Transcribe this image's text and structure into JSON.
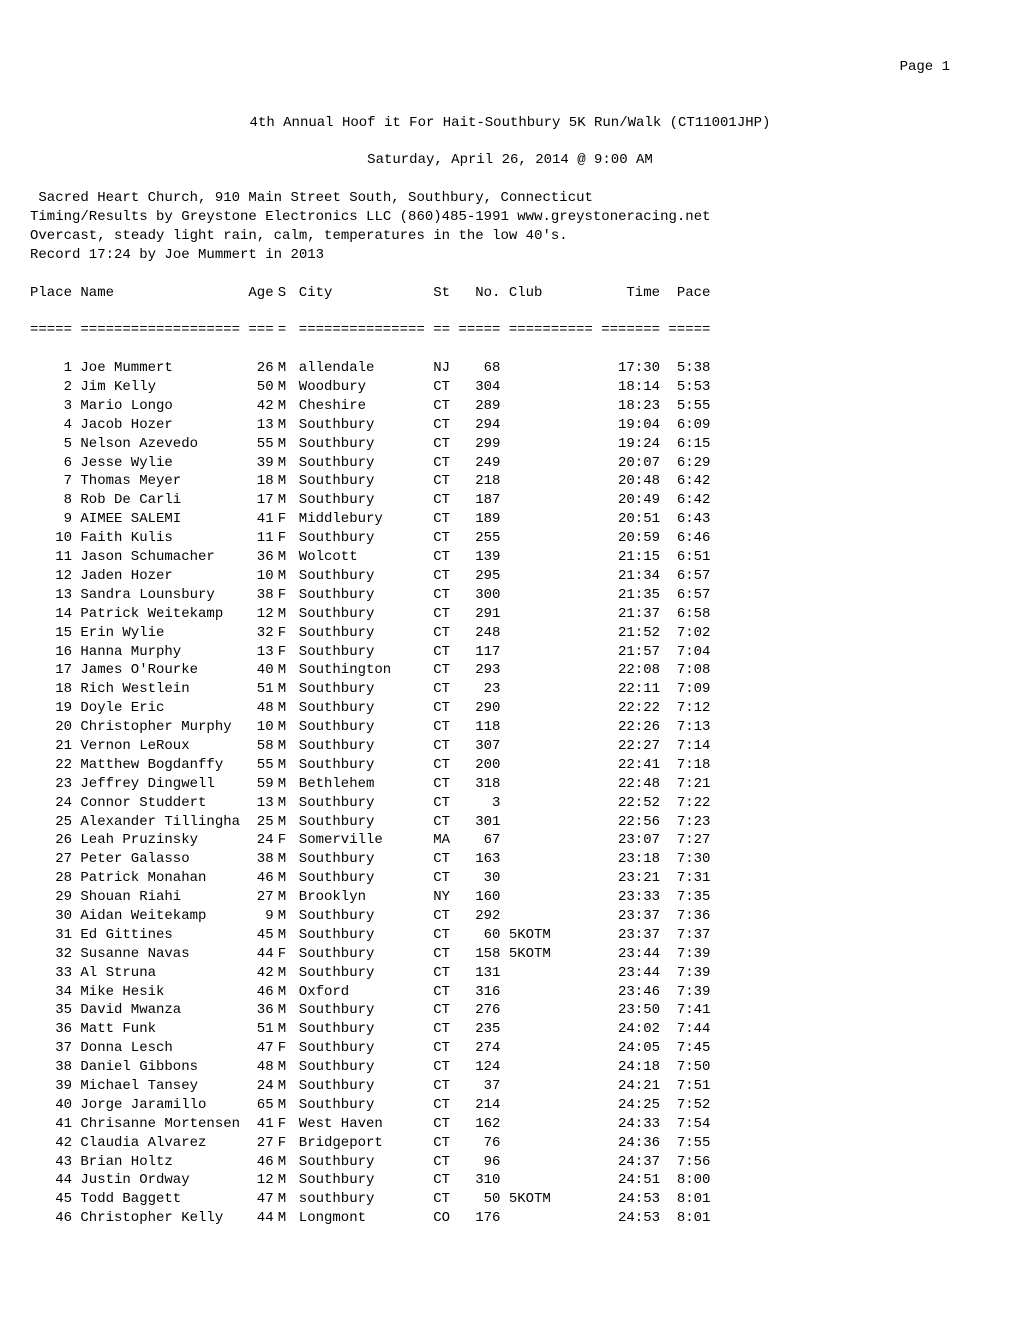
{
  "page_number": "Page 1",
  "title_line_1": "4th Annual Hoof it For Hait-Southbury 5K Run/Walk (CT11001JHP)",
  "title_line_2": "Saturday, April 26, 2014 @ 9:00 AM",
  "info_lines": [
    " Sacred Heart Church, 910 Main Street South, Southbury, Connecticut",
    "Timing/Results by Greystone Electronics LLC (860)485-1991 www.greystoneracing.net",
    "Overcast, steady light rain, calm, temperatures in the low 40's.",
    "Record 17:24 by Joe Mummert in 2013"
  ],
  "columns": [
    "Place",
    "Name",
    "Age",
    "S",
    "City",
    "St",
    "No.",
    "Club",
    "Time",
    "Pace"
  ],
  "sep": [
    "=====",
    "===================",
    "===",
    "=",
    "===============",
    "==",
    "=====",
    "==========",
    "=======",
    "====="
  ],
  "rows": [
    {
      "place": "1",
      "name": "Joe Mummert",
      "age": "26",
      "s": "M",
      "city": "allendale",
      "st": "NJ",
      "no": "68",
      "club": "",
      "time": "17:30",
      "pace": "5:38"
    },
    {
      "place": "2",
      "name": "Jim Kelly",
      "age": "50",
      "s": "M",
      "city": "Woodbury",
      "st": "CT",
      "no": "304",
      "club": "",
      "time": "18:14",
      "pace": "5:53"
    },
    {
      "place": "3",
      "name": "Mario Longo",
      "age": "42",
      "s": "M",
      "city": "Cheshire",
      "st": "CT",
      "no": "289",
      "club": "",
      "time": "18:23",
      "pace": "5:55"
    },
    {
      "place": "4",
      "name": "Jacob Hozer",
      "age": "13",
      "s": "M",
      "city": "Southbury",
      "st": "CT",
      "no": "294",
      "club": "",
      "time": "19:04",
      "pace": "6:09"
    },
    {
      "place": "5",
      "name": "Nelson Azevedo",
      "age": "55",
      "s": "M",
      "city": "Southbury",
      "st": "CT",
      "no": "299",
      "club": "",
      "time": "19:24",
      "pace": "6:15"
    },
    {
      "place": "6",
      "name": "Jesse Wylie",
      "age": "39",
      "s": "M",
      "city": "Southbury",
      "st": "CT",
      "no": "249",
      "club": "",
      "time": "20:07",
      "pace": "6:29"
    },
    {
      "place": "7",
      "name": "Thomas Meyer",
      "age": "18",
      "s": "M",
      "city": "Southbury",
      "st": "CT",
      "no": "218",
      "club": "",
      "time": "20:48",
      "pace": "6:42"
    },
    {
      "place": "8",
      "name": "Rob De Carli",
      "age": "17",
      "s": "M",
      "city": "Southbury",
      "st": "CT",
      "no": "187",
      "club": "",
      "time": "20:49",
      "pace": "6:42"
    },
    {
      "place": "9",
      "name": "AIMEE SALEMI",
      "age": "41",
      "s": "F",
      "city": "Middlebury",
      "st": "CT",
      "no": "189",
      "club": "",
      "time": "20:51",
      "pace": "6:43"
    },
    {
      "place": "10",
      "name": "Faith Kulis",
      "age": "11",
      "s": "F",
      "city": "Southbury",
      "st": "CT",
      "no": "255",
      "club": "",
      "time": "20:59",
      "pace": "6:46"
    },
    {
      "place": "11",
      "name": "Jason Schumacher",
      "age": "36",
      "s": "M",
      "city": "Wolcott",
      "st": "CT",
      "no": "139",
      "club": "",
      "time": "21:15",
      "pace": "6:51"
    },
    {
      "place": "12",
      "name": "Jaden Hozer",
      "age": "10",
      "s": "M",
      "city": "Southbury",
      "st": "CT",
      "no": "295",
      "club": "",
      "time": "21:34",
      "pace": "6:57"
    },
    {
      "place": "13",
      "name": "Sandra Lounsbury",
      "age": "38",
      "s": "F",
      "city": "Southbury",
      "st": "CT",
      "no": "300",
      "club": "",
      "time": "21:35",
      "pace": "6:57"
    },
    {
      "place": "14",
      "name": "Patrick Weitekamp",
      "age": "12",
      "s": "M",
      "city": "Southbury",
      "st": "CT",
      "no": "291",
      "club": "",
      "time": "21:37",
      "pace": "6:58"
    },
    {
      "place": "15",
      "name": "Erin Wylie",
      "age": "32",
      "s": "F",
      "city": "Southbury",
      "st": "CT",
      "no": "248",
      "club": "",
      "time": "21:52",
      "pace": "7:02"
    },
    {
      "place": "16",
      "name": "Hanna Murphy",
      "age": "13",
      "s": "F",
      "city": "Southbury",
      "st": "CT",
      "no": "117",
      "club": "",
      "time": "21:57",
      "pace": "7:04"
    },
    {
      "place": "17",
      "name": "James O'Rourke",
      "age": "40",
      "s": "M",
      "city": "Southington",
      "st": "CT",
      "no": "293",
      "club": "",
      "time": "22:08",
      "pace": "7:08"
    },
    {
      "place": "18",
      "name": "Rich Westlein",
      "age": "51",
      "s": "M",
      "city": "Southbury",
      "st": "CT",
      "no": "23",
      "club": "",
      "time": "22:11",
      "pace": "7:09"
    },
    {
      "place": "19",
      "name": "Doyle Eric",
      "age": "48",
      "s": "M",
      "city": "Southbury",
      "st": "CT",
      "no": "290",
      "club": "",
      "time": "22:22",
      "pace": "7:12"
    },
    {
      "place": "20",
      "name": "Christopher Murphy",
      "age": "10",
      "s": "M",
      "city": "Southbury",
      "st": "CT",
      "no": "118",
      "club": "",
      "time": "22:26",
      "pace": "7:13"
    },
    {
      "place": "21",
      "name": "Vernon LeRoux",
      "age": "58",
      "s": "M",
      "city": "Southbury",
      "st": "CT",
      "no": "307",
      "club": "",
      "time": "22:27",
      "pace": "7:14"
    },
    {
      "place": "22",
      "name": "Matthew Bogdanffy",
      "age": "55",
      "s": "M",
      "city": "Southbury",
      "st": "CT",
      "no": "200",
      "club": "",
      "time": "22:41",
      "pace": "7:18"
    },
    {
      "place": "23",
      "name": "Jeffrey Dingwell",
      "age": "59",
      "s": "M",
      "city": "Bethlehem",
      "st": "CT",
      "no": "318",
      "club": "",
      "time": "22:48",
      "pace": "7:21"
    },
    {
      "place": "24",
      "name": "Connor Studdert",
      "age": "13",
      "s": "M",
      "city": "Southbury",
      "st": "CT",
      "no": "3",
      "club": "",
      "time": "22:52",
      "pace": "7:22"
    },
    {
      "place": "25",
      "name": "Alexander Tillingha",
      "age": "25",
      "s": "M",
      "city": "Southbury",
      "st": "CT",
      "no": "301",
      "club": "",
      "time": "22:56",
      "pace": "7:23"
    },
    {
      "place": "26",
      "name": "Leah Pruzinsky",
      "age": "24",
      "s": "F",
      "city": "Somerville",
      "st": "MA",
      "no": "67",
      "club": "",
      "time": "23:07",
      "pace": "7:27"
    },
    {
      "place": "27",
      "name": "Peter Galasso",
      "age": "38",
      "s": "M",
      "city": "Southbury",
      "st": "CT",
      "no": "163",
      "club": "",
      "time": "23:18",
      "pace": "7:30"
    },
    {
      "place": "28",
      "name": "Patrick Monahan",
      "age": "46",
      "s": "M",
      "city": "Southbury",
      "st": "CT",
      "no": "30",
      "club": "",
      "time": "23:21",
      "pace": "7:31"
    },
    {
      "place": "29",
      "name": "Shouan Riahi",
      "age": "27",
      "s": "M",
      "city": "Brooklyn",
      "st": "NY",
      "no": "160",
      "club": "",
      "time": "23:33",
      "pace": "7:35"
    },
    {
      "place": "30",
      "name": "Aidan Weitekamp",
      "age": "9",
      "s": "M",
      "city": "Southbury",
      "st": "CT",
      "no": "292",
      "club": "",
      "time": "23:37",
      "pace": "7:36"
    },
    {
      "place": "31",
      "name": "Ed Gittines",
      "age": "45",
      "s": "M",
      "city": "Southbury",
      "st": "CT",
      "no": "60",
      "club": "5KOTM",
      "time": "23:37",
      "pace": "7:37"
    },
    {
      "place": "32",
      "name": "Susanne Navas",
      "age": "44",
      "s": "F",
      "city": "Southbury",
      "st": "CT",
      "no": "158",
      "club": "5KOTM",
      "time": "23:44",
      "pace": "7:39"
    },
    {
      "place": "33",
      "name": "Al Struna",
      "age": "42",
      "s": "M",
      "city": "Southbury",
      "st": "CT",
      "no": "131",
      "club": "",
      "time": "23:44",
      "pace": "7:39"
    },
    {
      "place": "34",
      "name": "Mike Hesik",
      "age": "46",
      "s": "M",
      "city": "Oxford",
      "st": "CT",
      "no": "316",
      "club": "",
      "time": "23:46",
      "pace": "7:39"
    },
    {
      "place": "35",
      "name": "David Mwanza",
      "age": "36",
      "s": "M",
      "city": "Southbury",
      "st": "CT",
      "no": "276",
      "club": "",
      "time": "23:50",
      "pace": "7:41"
    },
    {
      "place": "36",
      "name": "Matt Funk",
      "age": "51",
      "s": "M",
      "city": "Southbury",
      "st": "CT",
      "no": "235",
      "club": "",
      "time": "24:02",
      "pace": "7:44"
    },
    {
      "place": "37",
      "name": "Donna Lesch",
      "age": "47",
      "s": "F",
      "city": "Southbury",
      "st": "CT",
      "no": "274",
      "club": "",
      "time": "24:05",
      "pace": "7:45"
    },
    {
      "place": "38",
      "name": "Daniel Gibbons",
      "age": "48",
      "s": "M",
      "city": "Southbury",
      "st": "CT",
      "no": "124",
      "club": "",
      "time": "24:18",
      "pace": "7:50"
    },
    {
      "place": "39",
      "name": "Michael Tansey",
      "age": "24",
      "s": "M",
      "city": "Southbury",
      "st": "CT",
      "no": "37",
      "club": "",
      "time": "24:21",
      "pace": "7:51"
    },
    {
      "place": "40",
      "name": "Jorge Jaramillo",
      "age": "65",
      "s": "M",
      "city": "Southbury",
      "st": "CT",
      "no": "214",
      "club": "",
      "time": "24:25",
      "pace": "7:52"
    },
    {
      "place": "41",
      "name": "Chrisanne Mortensen",
      "age": "41",
      "s": "F",
      "city": "West Haven",
      "st": "CT",
      "no": "162",
      "club": "",
      "time": "24:33",
      "pace": "7:54"
    },
    {
      "place": "42",
      "name": "Claudia Alvarez",
      "age": "27",
      "s": "F",
      "city": "Bridgeport",
      "st": "CT",
      "no": "76",
      "club": "",
      "time": "24:36",
      "pace": "7:55"
    },
    {
      "place": "43",
      "name": "Brian Holtz",
      "age": "46",
      "s": "M",
      "city": "Southbury",
      "st": "CT",
      "no": "96",
      "club": "",
      "time": "24:37",
      "pace": "7:56"
    },
    {
      "place": "44",
      "name": "Justin Ordway",
      "age": "12",
      "s": "M",
      "city": "Southbury",
      "st": "CT",
      "no": "310",
      "club": "",
      "time": "24:51",
      "pace": "8:00"
    },
    {
      "place": "45",
      "name": "Todd Baggett",
      "age": "47",
      "s": "M",
      "city": "southbury",
      "st": "CT",
      "no": "50",
      "club": "5KOTM",
      "time": "24:53",
      "pace": "8:01"
    },
    {
      "place": "46",
      "name": "Christopher Kelly",
      "age": "44",
      "s": "M",
      "city": "Longmont",
      "st": "CO",
      "no": "176",
      "club": "",
      "time": "24:53",
      "pace": "8:01"
    }
  ],
  "style": {
    "font_family": "Courier New, monospace",
    "font_size_pt": 11,
    "text_color": "#000000",
    "background_color": "#ffffff"
  }
}
